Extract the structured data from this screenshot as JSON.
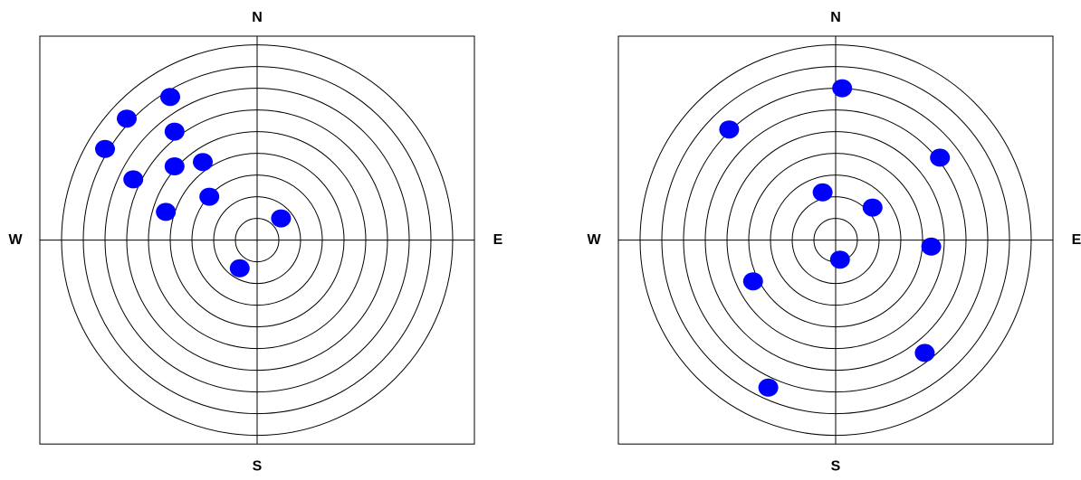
{
  "chart_data": [
    {
      "type": "scatter",
      "labels": {
        "north": "N",
        "south": "S",
        "west": "W",
        "east": "E"
      },
      "xlim": [
        -10,
        10
      ],
      "ylim": [
        -9.4,
        9.4
      ],
      "rings": 9,
      "color": "#0000ff",
      "x": [
        -4.0,
        -6.0,
        -3.8,
        -7.0,
        -2.5,
        -3.8,
        -5.7,
        -2.2,
        -4.2,
        1.1,
        -0.8
      ],
      "y": [
        6.6,
        5.6,
        5.0,
        4.2,
        3.6,
        3.4,
        2.8,
        2.0,
        1.3,
        1.0,
        -1.3
      ]
    },
    {
      "type": "scatter",
      "labels": {
        "north": "N",
        "south": "S",
        "west": "W",
        "east": "E"
      },
      "xlim": [
        -10,
        10
      ],
      "ylim": [
        -9.4,
        9.4
      ],
      "rings": 9,
      "color": "#0000ff",
      "x": [
        0.3,
        -4.9,
        4.8,
        -0.6,
        1.7,
        4.4,
        0.2,
        -3.8,
        4.1,
        -3.1
      ],
      "y": [
        7.0,
        5.1,
        3.8,
        2.2,
        1.5,
        -0.3,
        -0.9,
        -1.9,
        -5.2,
        -6.8
      ]
    }
  ]
}
